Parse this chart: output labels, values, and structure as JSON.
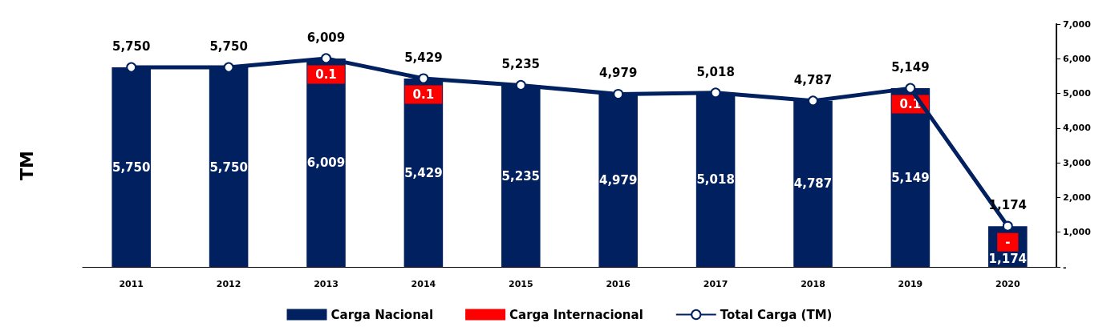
{
  "chart_data": {
    "type": "bar",
    "stacked": true,
    "ylabel": "TM",
    "categories": [
      "2011",
      "2012",
      "2013",
      "2014",
      "2015",
      "2016",
      "2017",
      "2018",
      "2019",
      "2020"
    ],
    "series": [
      {
        "name": "Carga Nacional",
        "color": "#002060",
        "values": [
          5750,
          5750,
          6009,
          5429,
          5235,
          4979,
          5018,
          4787,
          5149,
          1174
        ],
        "value_labels": [
          "5,750",
          "5,750",
          "6,009",
          "5,429",
          "5,235",
          "4,979",
          "5,018",
          "4,787",
          "5,149",
          "1,174"
        ]
      },
      {
        "name": "Carga Internacional",
        "color": "#ff0000",
        "values": [
          null,
          null,
          0.1,
          0.1,
          null,
          null,
          null,
          null,
          0.1,
          0
        ],
        "value_labels": [
          null,
          null,
          "0.1",
          "0.1",
          null,
          null,
          null,
          null,
          "0.1",
          "-"
        ]
      },
      {
        "name": "Total Carga (TM)",
        "type": "line",
        "color": "#002060",
        "values": [
          5750,
          5750,
          6009,
          5429,
          5235,
          4979,
          5018,
          4787,
          5149,
          1174
        ],
        "value_labels": [
          "5,750",
          "5,750",
          "6,009",
          "5,429",
          "5,235",
          "4,979",
          "5,018",
          "4,787",
          "5,149",
          "1,174"
        ]
      }
    ],
    "ylim": [
      0,
      7000
    ],
    "yticks": [
      {
        "value": 0,
        "label": "-"
      },
      {
        "value": 1000,
        "label": "1,000"
      },
      {
        "value": 2000,
        "label": "2,000"
      },
      {
        "value": 3000,
        "label": "3,000"
      },
      {
        "value": 4000,
        "label": "4,000"
      },
      {
        "value": 5000,
        "label": "5,000"
      },
      {
        "value": 6000,
        "label": "6,000"
      },
      {
        "value": 7000,
        "label": "7,000"
      }
    ],
    "grid": false,
    "legend": "bottom",
    "marker": "circle",
    "line_style": "solid",
    "data_labels": true
  }
}
